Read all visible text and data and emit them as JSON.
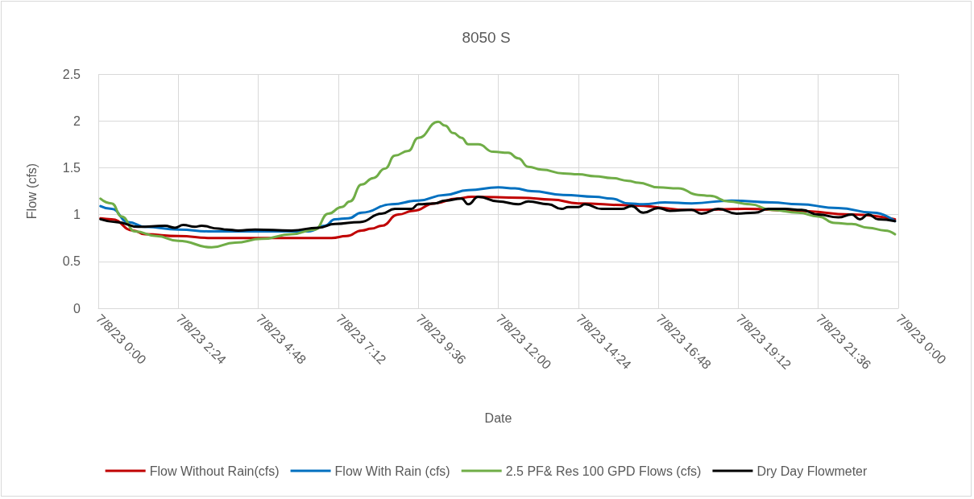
{
  "chart_data": {
    "type": "line",
    "title": "8050 S",
    "xlabel": "Date",
    "ylabel": "Flow (cfs)",
    "xlim": [
      "--07-08T00:00",
      "--07-09T00:00"
    ],
    "xticks": [
      {
        "value": "--07-08T00:00",
        "label": "7/8/23 0:00"
      },
      {
        "value": "--07-08T02:24",
        "label": "7/8/23 2:24"
      },
      {
        "value": "--07-08T04:48",
        "label": "7/8/23 4:48"
      },
      {
        "value": "--07-08T07:12",
        "label": "7/8/23 7:12"
      },
      {
        "value": "--07-08T09:36",
        "label": "7/8/23 9:36"
      },
      {
        "value": "--07-08T12:00",
        "label": "7/8/23 12:00"
      },
      {
        "value": "--07-08T14:24",
        "label": "7/8/23 14:24"
      },
      {
        "value": "--07-08T16:48",
        "label": "7/8/23 16:48"
      },
      {
        "value": "--07-08T19:12",
        "label": "7/8/23 19:12"
      },
      {
        "value": "--07-08T21:36",
        "label": "7/8/23 21:36"
      },
      {
        "value": "--07-09T00:00",
        "label": "7/9/23 0:00"
      }
    ],
    "ylim": [
      0,
      2.5
    ],
    "yticks": [
      0,
      0.5,
      1,
      1.5,
      2,
      2.5
    ],
    "grid": true,
    "legend": "bottom",
    "marker": "none",
    "line_style": "solid",
    "series": [
      {
        "name": "Flow Without Rain(cfs)",
        "color": "#c00000",
        "x": [
          "--07-08T00:04",
          "--07-08T00:24",
          "--07-08T01:03",
          "--07-08T01:24",
          "--07-08T02:24",
          "--07-08T03:24",
          "--07-08T05:00",
          "--07-08T07:00",
          "--07-08T07:27",
          "--07-08T07:54",
          "--07-08T08:12",
          "--07-08T08:30",
          "--07-08T09:00",
          "--07-08T09:27",
          "--07-08T10:06",
          "--07-08T10:45",
          "--07-08T11:12",
          "--07-08T12:42",
          "--07-08T13:36",
          "--07-08T14:24",
          "--07-08T15:54",
          "--07-08T17:48",
          "--07-08T19:24",
          "--07-08T21:00",
          "--07-08T22:36",
          "--07-08T23:54"
        ],
        "values": [
          0.96,
          0.95,
          0.83,
          0.79,
          0.77,
          0.75,
          0.75,
          0.75,
          0.77,
          0.83,
          0.85,
          0.88,
          1,
          1.04,
          1.12,
          1.17,
          1.19,
          1.18,
          1.16,
          1.12,
          1.1,
          1.05,
          1.06,
          1.04,
          1,
          0.95
        ]
      },
      {
        "name": "Flow With Rain (cfs)",
        "color": "#0070c0",
        "x": [
          "--07-08T00:04",
          "--07-08T00:24",
          "--07-08T00:54",
          "--07-08T01:24",
          "--07-08T02:24",
          "--07-08T03:24",
          "--07-08T04:15",
          "--07-08T05:24",
          "--07-08T06:18",
          "--07-08T06:48",
          "--07-08T07:06",
          "--07-08T07:30",
          "--07-08T07:54",
          "--07-08T08:48",
          "--07-08T09:36",
          "--07-08T10:24",
          "--07-08T11:06",
          "--07-08T12:00",
          "--07-08T12:30",
          "--07-08T13:00",
          "--07-08T13:57",
          "--07-08T14:54",
          "--07-08T15:24",
          "--07-08T15:54",
          "--07-08T16:21",
          "--07-08T17:00",
          "--07-08T17:48",
          "--07-08T19:00",
          "--07-08T20:12",
          "--07-08T21:00",
          "--07-08T22:12",
          "--07-08T23:15",
          "--07-08T23:54"
        ],
        "values": [
          1.09,
          1.06,
          0.92,
          0.87,
          0.84,
          0.82,
          0.82,
          0.82,
          0.82,
          0.88,
          0.95,
          0.96,
          1.02,
          1.11,
          1.15,
          1.21,
          1.26,
          1.29,
          1.28,
          1.25,
          1.21,
          1.19,
          1.17,
          1.12,
          1.11,
          1.13,
          1.12,
          1.15,
          1.13,
          1.11,
          1.07,
          1.02,
          0.93
        ]
      },
      {
        "name": "2.5 PF& Res 100 GPD Flows (cfs)",
        "color": "#70ad47",
        "x": [
          "--07-08T00:04",
          "--07-08T00:24",
          "--07-08T00:42",
          "--07-08T01:06",
          "--07-08T01:45",
          "--07-08T02:24",
          "--07-08T03:24",
          "--07-08T04:06",
          "--07-08T04:54",
          "--07-08T05:48",
          "--07-08T06:30",
          "--07-08T06:54",
          "--07-08T07:18",
          "--07-08T07:33",
          "--07-08T07:54",
          "--07-08T08:15",
          "--07-08T08:36",
          "--07-08T08:54",
          "--07-08T09:18",
          "--07-08T09:36",
          "--07-08T10:12",
          "--07-08T10:24",
          "--07-08T10:39",
          "--07-08T10:54",
          "--07-08T11:06",
          "--07-08T11:24",
          "--07-08T11:51",
          "--07-08T12:18",
          "--07-08T12:36",
          "--07-08T12:54",
          "--07-08T13:18",
          "--07-08T13:57",
          "--07-08T14:24",
          "--07-08T14:54",
          "--07-08T15:24",
          "--07-08T15:54",
          "--07-08T16:12",
          "--07-08T16:48",
          "--07-08T17:24",
          "--07-08T18:00",
          "--07-08T18:21",
          "--07-08T18:54",
          "--07-08T19:33",
          "--07-08T20:12",
          "--07-08T21:00",
          "--07-08T21:36",
          "--07-08T22:06",
          "--07-08T22:36",
          "--07-08T23:06",
          "--07-08T23:36",
          "--07-08T23:54"
        ],
        "values": [
          1.17,
          1.12,
          0.98,
          0.82,
          0.77,
          0.72,
          0.65,
          0.7,
          0.74,
          0.79,
          0.84,
          1.01,
          1.08,
          1.14,
          1.32,
          1.39,
          1.49,
          1.63,
          1.68,
          1.82,
          1.99,
          1.95,
          1.87,
          1.82,
          1.75,
          1.75,
          1.67,
          1.66,
          1.6,
          1.51,
          1.48,
          1.44,
          1.43,
          1.41,
          1.39,
          1.36,
          1.34,
          1.29,
          1.28,
          1.21,
          1.2,
          1.14,
          1.11,
          1.05,
          1.02,
          0.98,
          0.91,
          0.9,
          0.86,
          0.83,
          0.79
        ]
      },
      {
        "name": "Dry Day Flowmeter",
        "color": "#000000",
        "x": [
          "--07-08T00:04",
          "--07-08T00:33",
          "--07-08T01:12",
          "--07-08T02:00",
          "--07-08T02:18",
          "--07-08T02:33",
          "--07-08T02:54",
          "--07-08T03:06",
          "--07-08T03:36",
          "--07-08T03:51",
          "--07-08T04:12",
          "--07-08T04:42",
          "--07-08T05:48",
          "--07-08T06:36",
          "--07-08T07:06",
          "--07-08T07:51",
          "--07-08T08:30",
          "--07-08T08:54",
          "--07-08T09:24",
          "--07-08T09:36",
          "--07-08T10:06",
          "--07-08T10:24",
          "--07-08T10:54",
          "--07-08T11:06",
          "--07-08T11:24",
          "--07-08T12:00",
          "--07-08T12:36",
          "--07-08T12:54",
          "--07-08T13:30",
          "--07-08T13:54",
          "--07-08T14:06",
          "--07-08T14:24",
          "--07-08T14:36",
          "--07-08T15:06",
          "--07-08T15:42",
          "--07-08T16:00",
          "--07-08T16:21",
          "--07-08T16:48",
          "--07-08T17:09",
          "--07-08T17:48",
          "--07-08T18:06",
          "--07-08T18:36",
          "--07-08T19:09",
          "--07-08T19:42",
          "--07-08T20:06",
          "--07-08T20:36",
          "--07-08T21:06",
          "--07-08T21:36",
          "--07-08T22:12",
          "--07-08T22:36",
          "--07-08T22:51",
          "--07-08T23:06",
          "--07-08T23:24",
          "--07-08T23:54"
        ],
        "values": [
          0.95,
          0.92,
          0.87,
          0.88,
          0.86,
          0.89,
          0.87,
          0.88,
          0.85,
          0.84,
          0.83,
          0.84,
          0.83,
          0.86,
          0.9,
          0.92,
          1.01,
          1.06,
          1.06,
          1.11,
          1.12,
          1.15,
          1.17,
          1.11,
          1.19,
          1.14,
          1.11,
          1.14,
          1.11,
          1.06,
          1.08,
          1.08,
          1.11,
          1.06,
          1.06,
          1.09,
          1.02,
          1.07,
          1.04,
          1.05,
          1.01,
          1.06,
          1.01,
          1.02,
          1.06,
          1.06,
          1.05,
          1,
          0.97,
          1,
          0.95,
          1,
          0.95,
          0.93
        ]
      }
    ]
  }
}
